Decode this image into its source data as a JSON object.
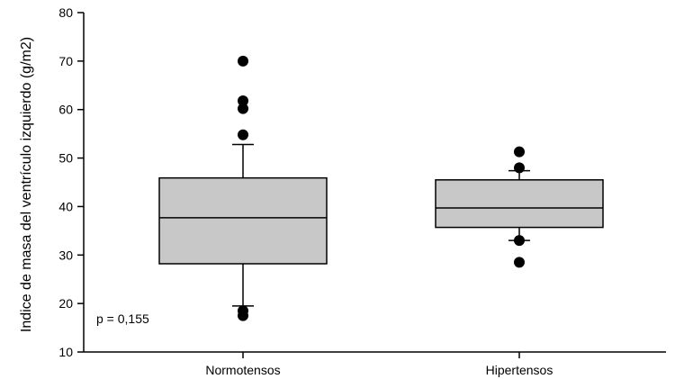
{
  "chart_data": {
    "type": "box",
    "title": "",
    "xlabel": "",
    "ylabel": "Indice de masa del ventrículo izquierdo (g/m2)",
    "ylim": [
      10,
      80
    ],
    "yticks": [
      10,
      20,
      30,
      40,
      50,
      60,
      70,
      80
    ],
    "grid": false,
    "categories": [
      "Normotensos",
      "Hipertensos"
    ],
    "boxes": [
      {
        "category": "Normotensos",
        "whisker_low": 19.5,
        "q1": 28.2,
        "median": 37.7,
        "q3": 45.9,
        "whisker_high": 52.8,
        "outliers": [
          17.5,
          18.5,
          54.8,
          60.2,
          61.8,
          70.0
        ]
      },
      {
        "category": "Hipertensos",
        "whisker_low": 33.0,
        "q1": 35.7,
        "median": 39.7,
        "q3": 45.5,
        "whisker_high": 47.4,
        "outliers": [
          28.5,
          33.0,
          48.0,
          51.3
        ]
      }
    ],
    "annotation": "p = 0,155",
    "colors": {
      "box_fill": "#c8c8c8",
      "stroke": "#000000",
      "outlier": "#000000"
    }
  }
}
